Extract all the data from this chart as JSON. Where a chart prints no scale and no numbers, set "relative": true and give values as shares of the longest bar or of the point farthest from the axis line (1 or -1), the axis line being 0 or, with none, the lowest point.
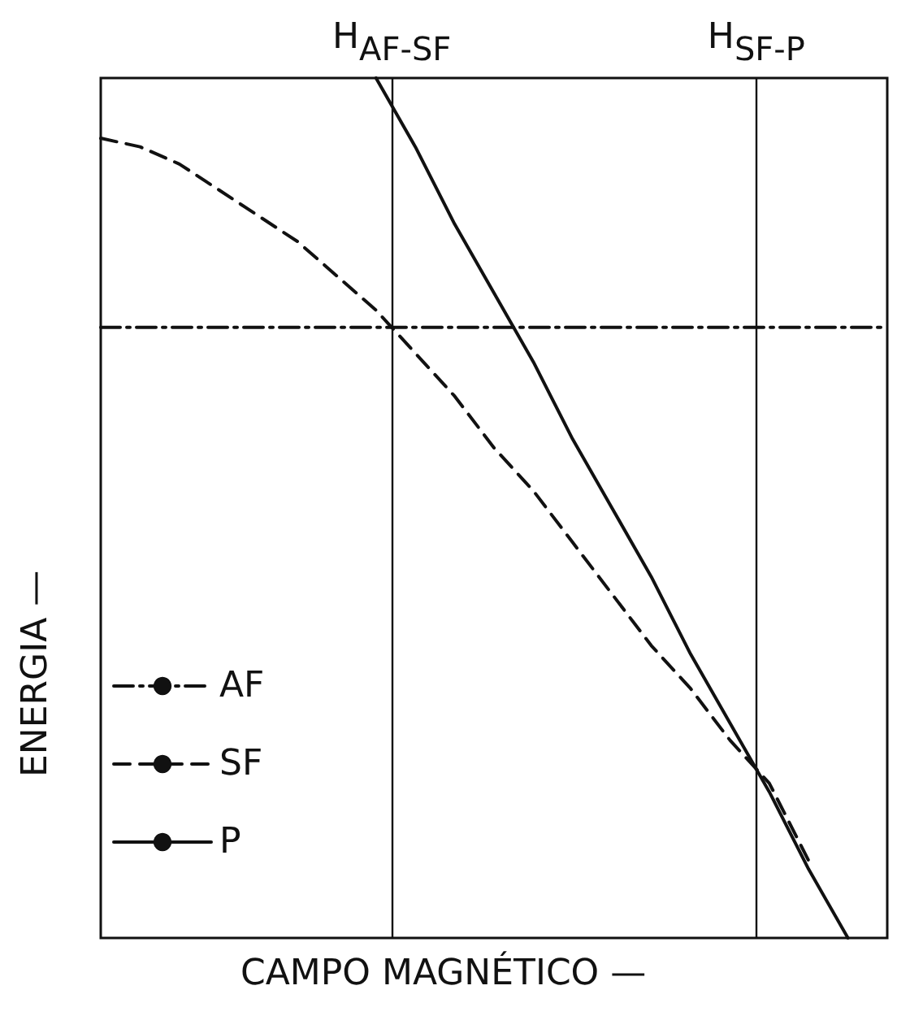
{
  "chart_data": {
    "type": "line",
    "relative": true,
    "xlabel": "CAMPO MAGNÉTICO —",
    "ylabel": "ENERGIA —",
    "categories": [
      null,
      null,
      null,
      null,
      null,
      null,
      null,
      null,
      null,
      null,
      null,
      null,
      null,
      null,
      null,
      null,
      null,
      null,
      null,
      null,
      null
    ],
    "series": [
      {
        "name": "AF",
        "color": "#111111",
        "line_style": "dashdot",
        "values": [
          0.71,
          0.71,
          0.71,
          0.71,
          0.71,
          0.71,
          0.71,
          0.71,
          0.71,
          0.71,
          0.71,
          0.71,
          0.71,
          0.71,
          0.71,
          0.71,
          0.71,
          0.71,
          0.71,
          0.71,
          0.71
        ]
      },
      {
        "name": "SF",
        "color": "#111111",
        "line_style": "dashed",
        "values": [
          0.93,
          0.92,
          0.9,
          0.87,
          0.84,
          0.81,
          0.77,
          0.73,
          0.68,
          0.63,
          0.57,
          0.52,
          0.46,
          0.4,
          0.34,
          0.29,
          0.23,
          0.18,
          0.09,
          null,
          null
        ]
      },
      {
        "name": "P",
        "color": "#111111",
        "line_style": "solid",
        "values": [
          null,
          null,
          null,
          null,
          null,
          null,
          null,
          1,
          0.92,
          0.83,
          0.75,
          0.67,
          0.58,
          0.5,
          0.42,
          0.33,
          0.25,
          0.17,
          0.08,
          0,
          null
        ]
      }
    ],
    "annotations": [
      "H$_{AF-SF}$",
      "H$_{SF-P}$"
    ],
    "legend": "bottom left",
    "marker": "none",
    "grid": false
  }
}
